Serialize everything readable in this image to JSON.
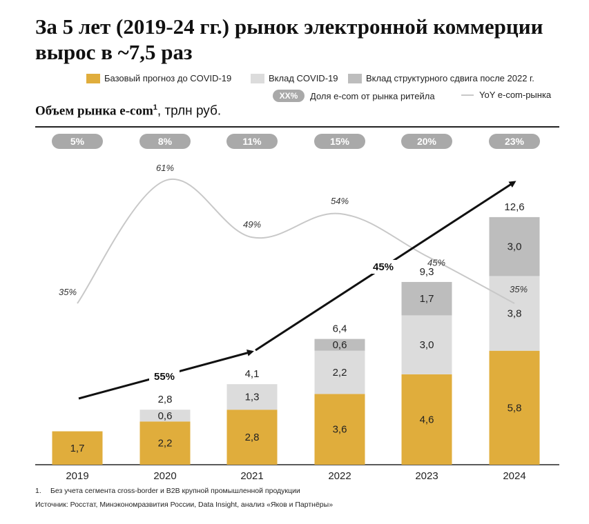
{
  "title": "За 5 лет (2019-24 гг.) рынок электронной коммерции вырос в ~7,5 раз",
  "legend": {
    "base": "Базовый прогноз до COVID-19",
    "covid": "Вклад COVID-19",
    "shift": "Вклад структурного сдвига после 2022 г.",
    "share_marker": "XX%",
    "share": "Доля e-com от рынка ритейла",
    "yoy": "YoY e-com-рынка"
  },
  "subtitle": {
    "bold": "Объем рынка e-com",
    "sup": "1",
    "rest": ", трлн руб."
  },
  "footnote": {
    "number": "1.",
    "text": "Без учета сегмента cross-border и B2B крупной промышленной продукции"
  },
  "source": "Источник: Росстат, Минэкономразвития России,  Data Insight, анализ «Яков и Партнёры»",
  "colors": {
    "base": "#e0ad3c",
    "covid": "#dcdcdc",
    "shift": "#bdbdbd",
    "pill": "#a9a9a9",
    "yoy_line": "#c8c8c8",
    "arrow": "#111111"
  },
  "chart_data": {
    "type": "bar",
    "stacked": true,
    "categories": [
      "2019",
      "2020",
      "2021",
      "2022",
      "2023",
      "2024"
    ],
    "series": [
      {
        "name": "Базовый прогноз до COVID-19",
        "values": [
          1.7,
          2.2,
          2.8,
          3.6,
          4.6,
          5.8
        ],
        "labels": [
          "1,7",
          "2,2",
          "2,8",
          "3,6",
          "4,6",
          "5,8"
        ]
      },
      {
        "name": "Вклад COVID-19",
        "values": [
          null,
          0.6,
          1.3,
          2.2,
          3.0,
          3.8
        ],
        "labels": [
          "",
          "0,6",
          "1,3",
          "2,2",
          "3,0",
          "3,8"
        ]
      },
      {
        "name": "Вклад структурного сдвига после 2022 г.",
        "values": [
          null,
          null,
          null,
          0.6,
          1.7,
          3.0
        ],
        "labels": [
          "",
          "",
          "",
          "0,6",
          "1,7",
          "3,0"
        ]
      }
    ],
    "totals": [
      null,
      2.8,
      4.1,
      6.4,
      9.3,
      12.6
    ],
    "total_labels": [
      "",
      "2,8",
      "4,1",
      "6,4",
      "9,3",
      "12,6"
    ],
    "share_of_retail": [
      "5%",
      "8%",
      "11%",
      "15%",
      "20%",
      "23%"
    ],
    "yoy": [
      35,
      61,
      49,
      54,
      45,
      35
    ],
    "yoy_labels": [
      "35%",
      "61%",
      "49%",
      "54%",
      "45%",
      "35%"
    ],
    "cagr_arrows": [
      {
        "from": "2019",
        "to": "2021",
        "label": "55%"
      },
      {
        "from": "2021",
        "to": "2024",
        "label": "45%"
      }
    ],
    "ylim": [
      0,
      13
    ]
  }
}
